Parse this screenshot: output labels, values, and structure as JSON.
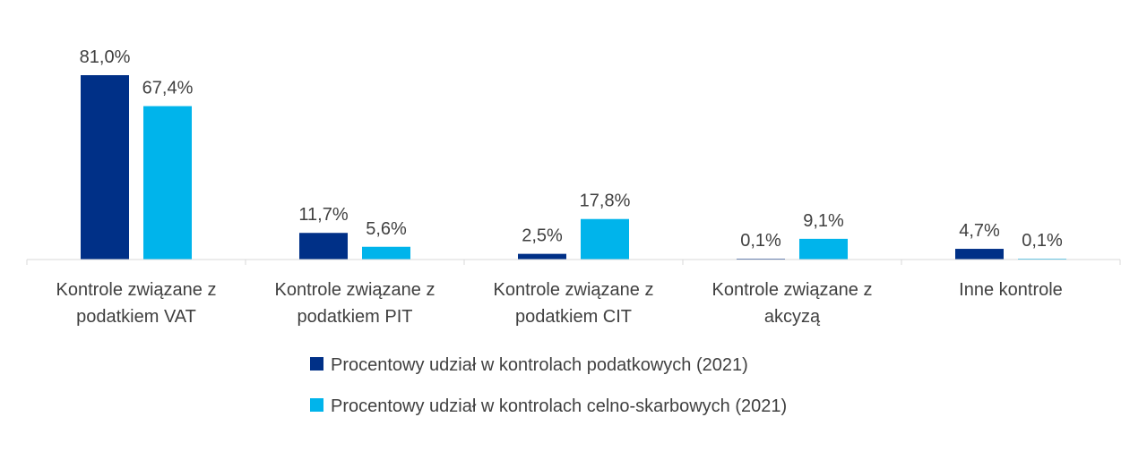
{
  "chart_data": {
    "type": "bar",
    "title": "",
    "xlabel": "",
    "ylabel": "",
    "ylim": [
      0,
      81.0
    ],
    "grid": false,
    "legend_position": "bottom",
    "categories": [
      [
        "Kontrole związane z",
        "podatkiem VAT"
      ],
      [
        "Kontrole związane z",
        "podatkiem PIT"
      ],
      [
        "Kontrole związane z",
        "podatkiem CIT"
      ],
      [
        "Kontrole związane z",
        "akcyzą"
      ],
      [
        "Inne kontrole"
      ]
    ],
    "series": [
      {
        "name": "Procentowy udział w kontrolach podatkowych (2021)",
        "color": "#003087",
        "values": [
          81.0,
          11.7,
          2.5,
          0.1,
          4.7
        ],
        "labels": [
          "81,0%",
          "11,7%",
          "2,5%",
          "0,1%",
          "4,7%"
        ]
      },
      {
        "name": "Procentowy udział w kontrolach celno-skarbowych (2021)",
        "color": "#00B4EB",
        "values": [
          67.4,
          5.6,
          17.8,
          9.1,
          0.1
        ],
        "labels": [
          "67,4%",
          "5,6%",
          "17,8%",
          "9,1%",
          "0,1%"
        ]
      }
    ]
  }
}
